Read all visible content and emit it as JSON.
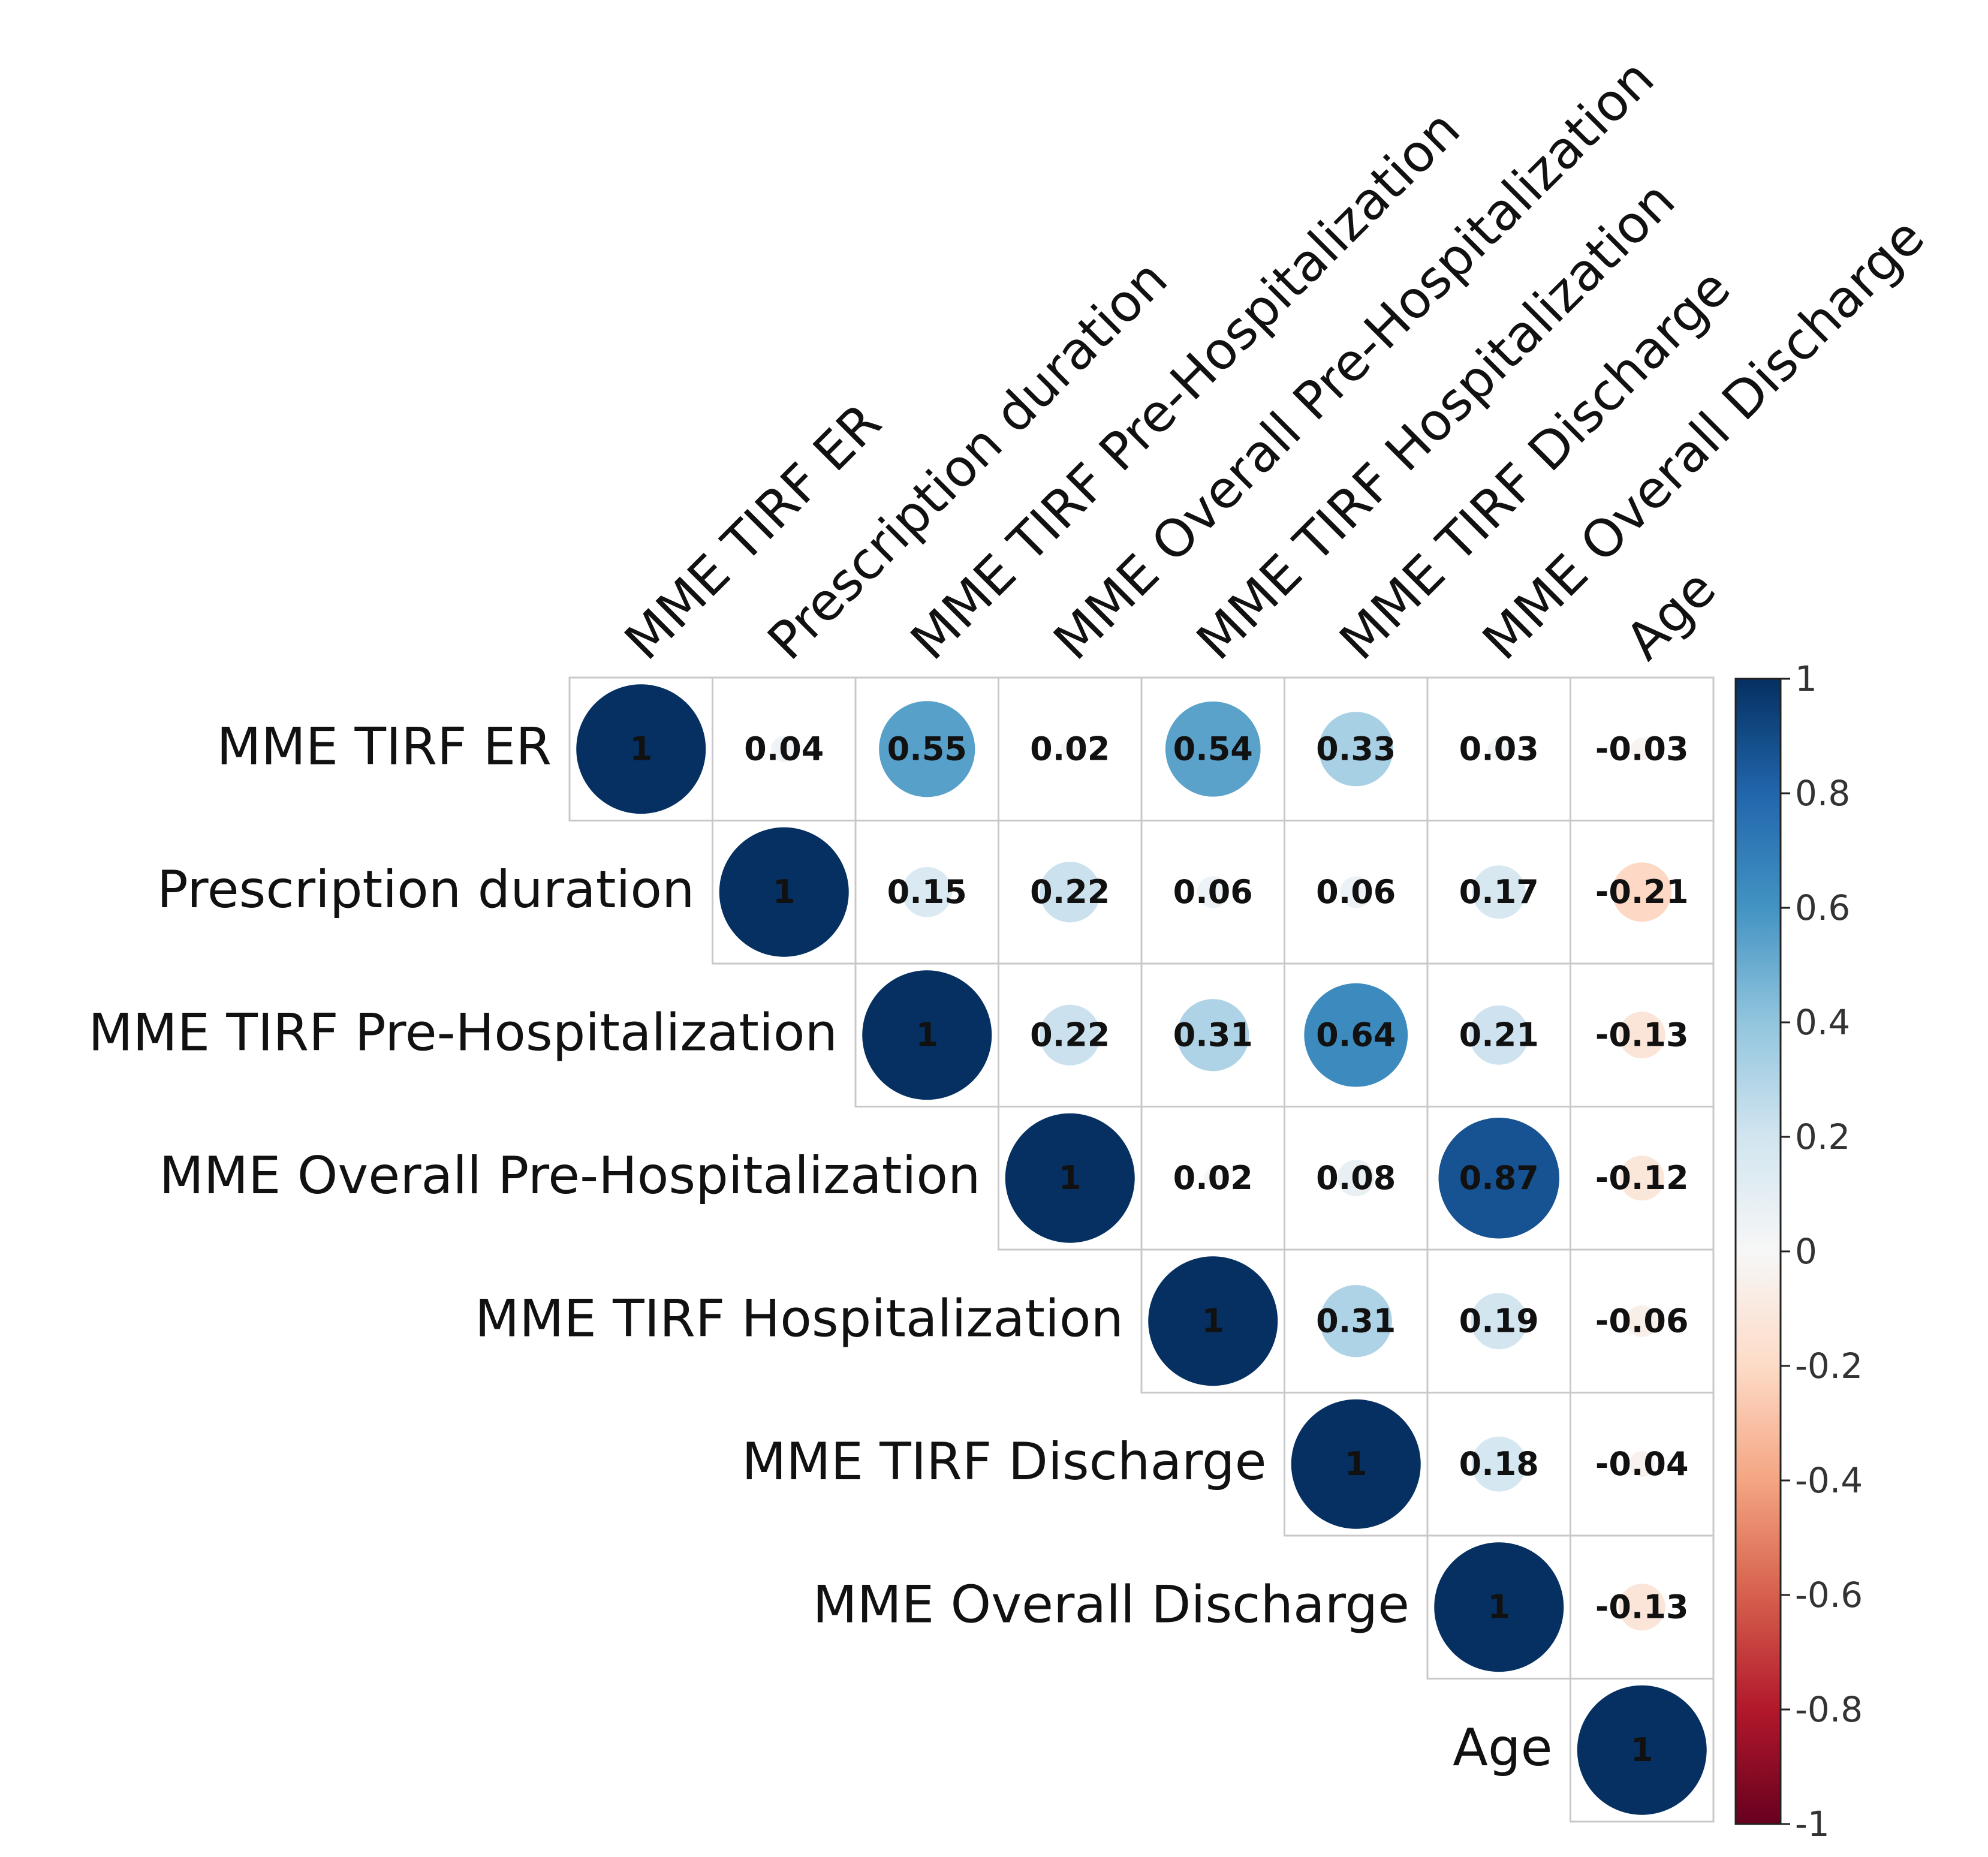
{
  "chart_data": {
    "type": "heatmap",
    "title": "",
    "variables": [
      "MME TIRF ER",
      "Prescription duration",
      "MME TIRF Pre-Hospitalization",
      "MME Overall Pre-Hospitalization",
      "MME TIRF Hospitalization",
      "MME TIRF Discharge",
      "MME Overall Discharge",
      "Age"
    ],
    "matrix_upper": [
      [
        1,
        0.04,
        0.55,
        0.02,
        0.54,
        0.33,
        0.03,
        -0.03
      ],
      [
        1,
        0.15,
        0.22,
        0.06,
        0.06,
        0.17,
        -0.21
      ],
      [
        1,
        0.22,
        0.31,
        0.64,
        0.21,
        -0.13
      ],
      [
        1,
        0.02,
        0.08,
        0.87,
        -0.12
      ],
      [
        1,
        0.31,
        0.19,
        -0.06
      ],
      [
        1,
        0.18,
        -0.04
      ],
      [
        1,
        -0.13
      ],
      [
        1
      ]
    ],
    "marker": "circle size and color encode correlation",
    "colorbar": {
      "colormap": "RdBu",
      "range": [
        -1,
        1
      ],
      "ticks": [
        "1",
        "0.8",
        "0.6",
        "0.4",
        "0.2",
        "0",
        "-0.2",
        "-0.4",
        "-0.6",
        "-0.8",
        "-1"
      ],
      "stops": [
        "#67001f",
        "#b2182b",
        "#d6604d",
        "#f4a582",
        "#fddbc7",
        "#f7f7f7",
        "#d1e5f0",
        "#92c5de",
        "#4393c3",
        "#2166ac",
        "#053061"
      ]
    }
  }
}
